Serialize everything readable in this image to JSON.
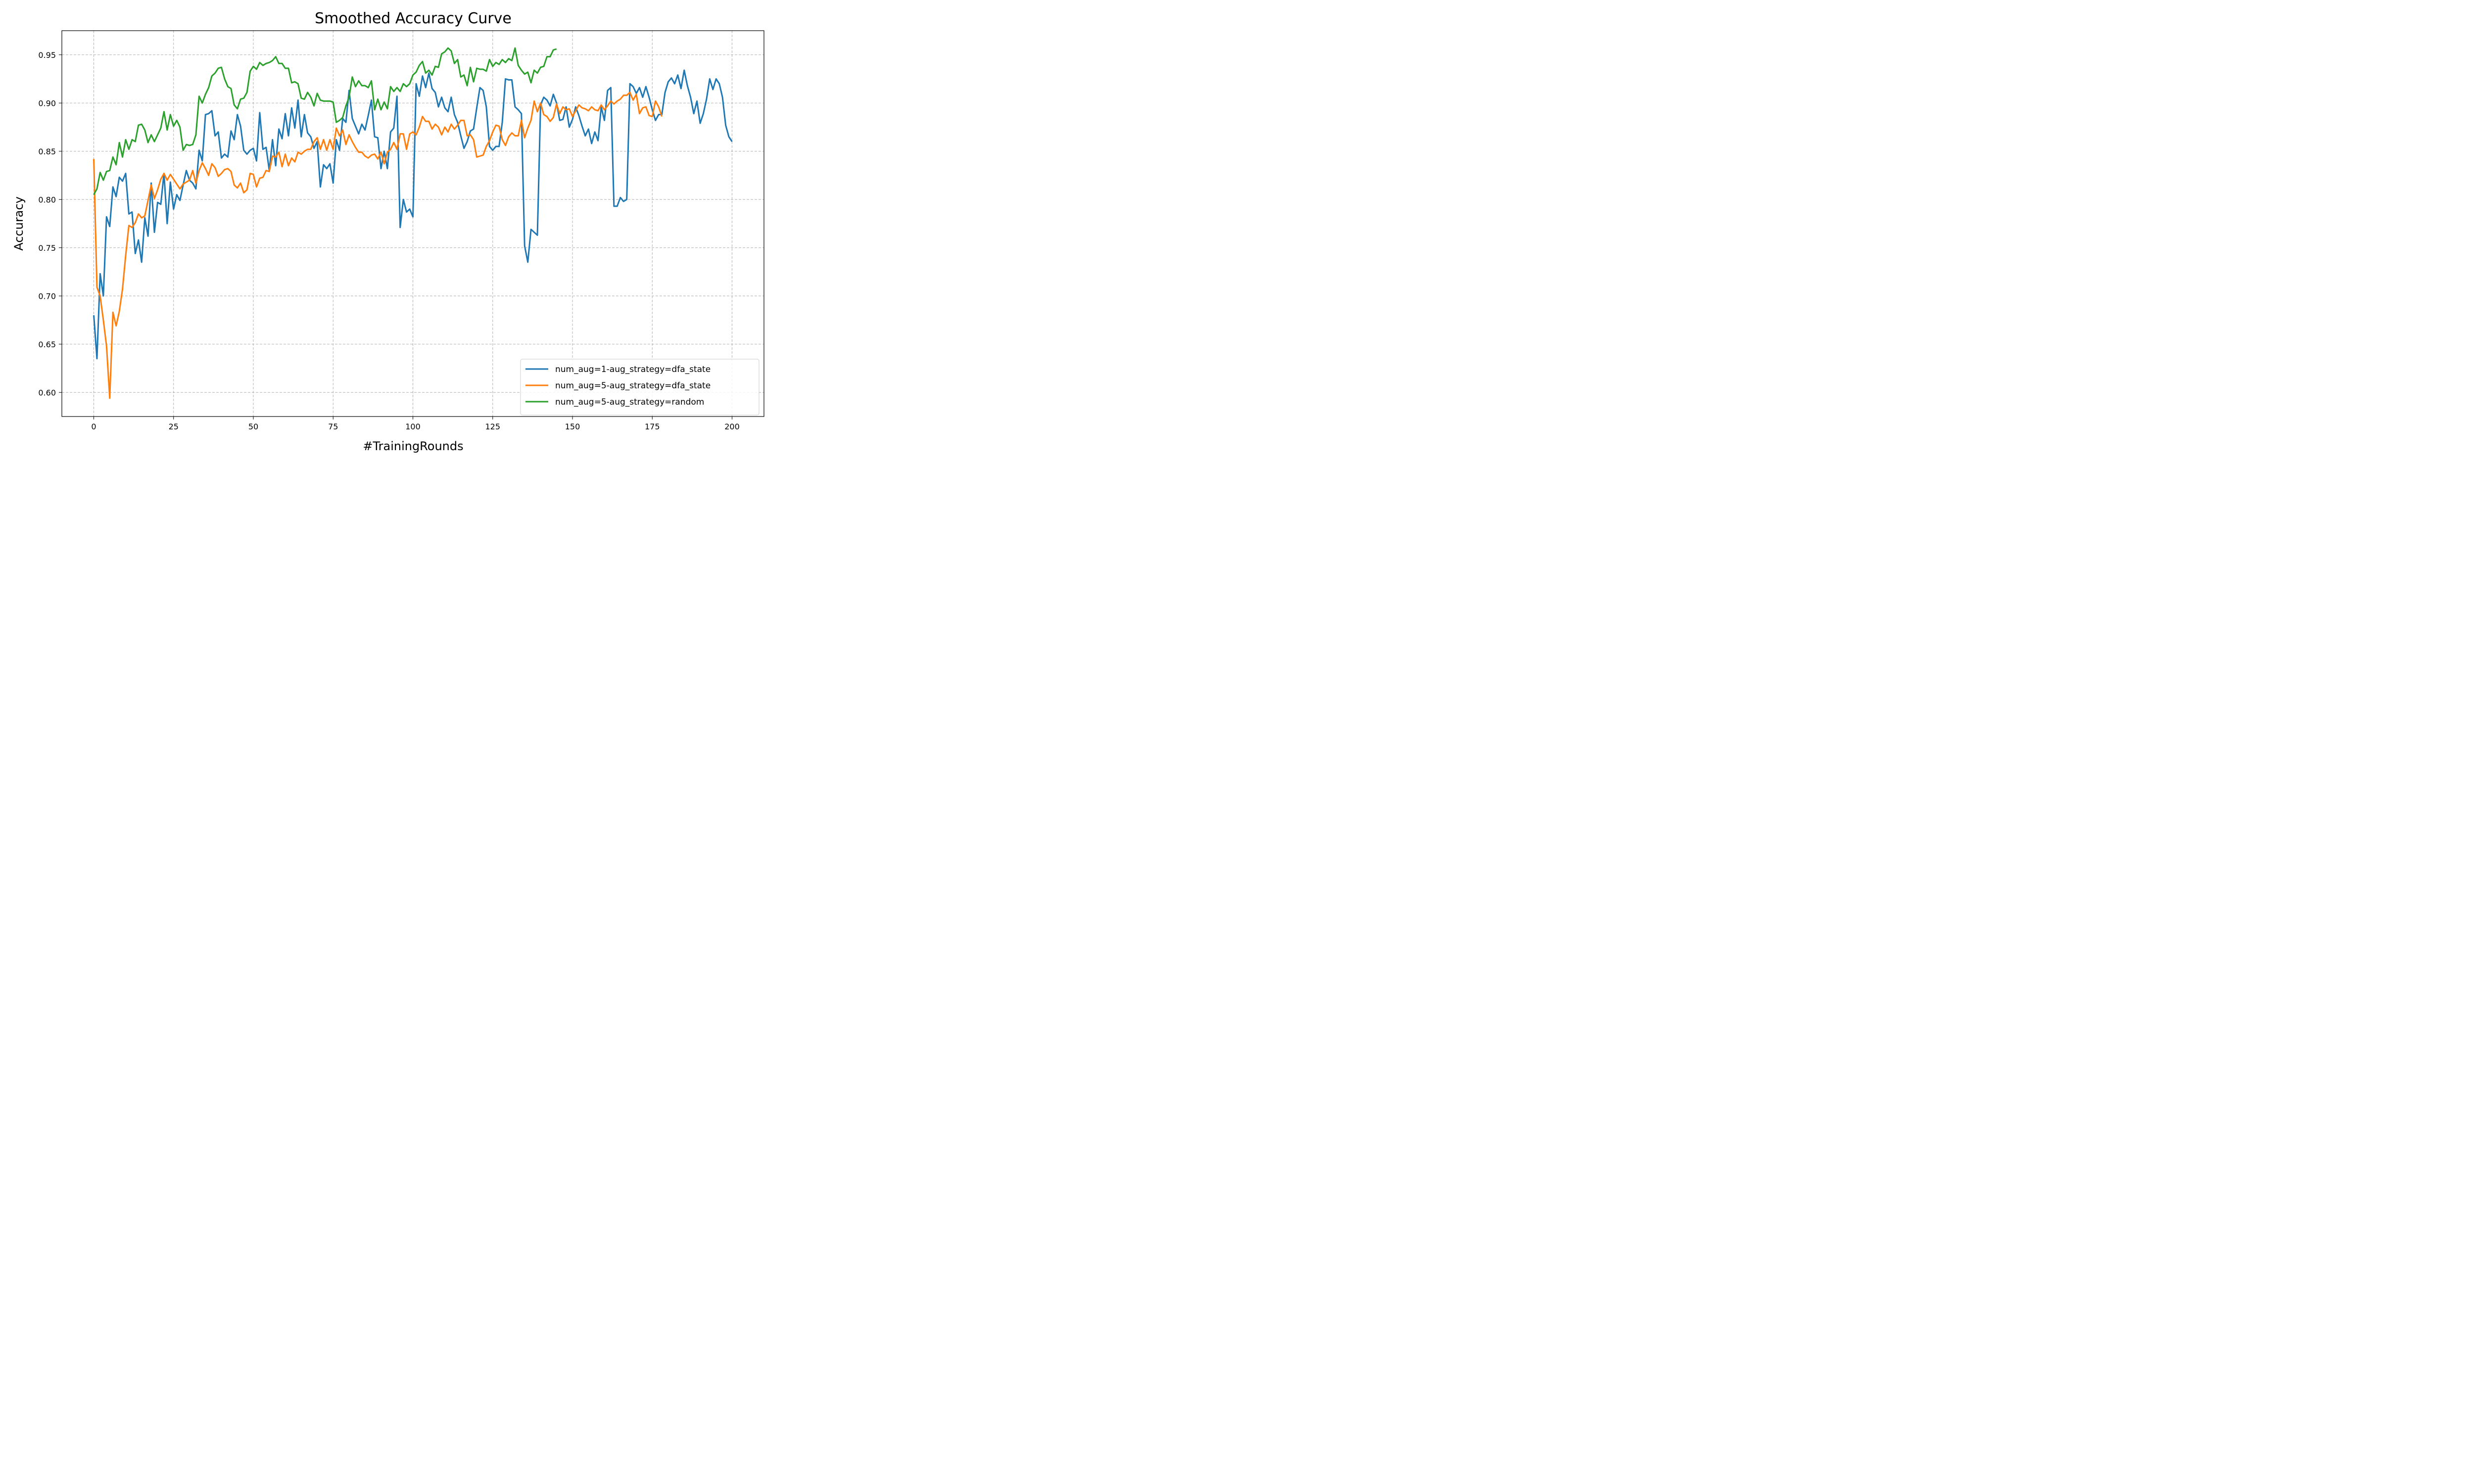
{
  "chart_data": {
    "type": "line",
    "title": "Smoothed Accuracy Curve",
    "xlabel": "#TrainingRounds",
    "ylabel": "Accuracy",
    "xlim": [
      -10,
      210
    ],
    "ylim": [
      0.575,
      0.975
    ],
    "xticks": [
      0,
      25,
      50,
      75,
      100,
      125,
      150,
      175,
      200
    ],
    "xtick_labels": [
      "0",
      "25",
      "50",
      "75",
      "100",
      "125",
      "150",
      "175",
      "200"
    ],
    "yticks": [
      0.6,
      0.65,
      0.7,
      0.75,
      0.8,
      0.85,
      0.9,
      0.95
    ],
    "ytick_labels": [
      "0.60",
      "0.65",
      "0.70",
      "0.75",
      "0.80",
      "0.85",
      "0.90",
      "0.95"
    ],
    "grid": true,
    "legend_position": "lower-right",
    "series": [
      {
        "name": "num_aug=1-aug_strategy=dfa_state",
        "color": "#1f77b4",
        "values": [
          0.68,
          0.635,
          0.723,
          0.7,
          0.782,
          0.772,
          0.813,
          0.803,
          0.823,
          0.819,
          0.827,
          0.785,
          0.787,
          0.744,
          0.758,
          0.735,
          0.781,
          0.762,
          0.817,
          0.766,
          0.797,
          0.795,
          0.827,
          0.775,
          0.818,
          0.79,
          0.805,
          0.799,
          0.815,
          0.83,
          0.82,
          0.817,
          0.811,
          0.851,
          0.84,
          0.888,
          0.889,
          0.892,
          0.866,
          0.87,
          0.843,
          0.847,
          0.844,
          0.871,
          0.862,
          0.888,
          0.876,
          0.851,
          0.847,
          0.851,
          0.853,
          0.84,
          0.89,
          0.852,
          0.854,
          0.83,
          0.862,
          0.835,
          0.873,
          0.863,
          0.889,
          0.866,
          0.895,
          0.874,
          0.903,
          0.865,
          0.888,
          0.869,
          0.865,
          0.853,
          0.86,
          0.813,
          0.836,
          0.832,
          0.837,
          0.817,
          0.862,
          0.851,
          0.884,
          0.88,
          0.913,
          0.884,
          0.876,
          0.868,
          0.878,
          0.872,
          0.887,
          0.903,
          0.865,
          0.864,
          0.832,
          0.85,
          0.832,
          0.87,
          0.874,
          0.907,
          0.771,
          0.8,
          0.787,
          0.79,
          0.782,
          0.92,
          0.907,
          0.928,
          0.916,
          0.931,
          0.915,
          0.911,
          0.896,
          0.906,
          0.895,
          0.891,
          0.906,
          0.888,
          0.88,
          0.866,
          0.853,
          0.86,
          0.871,
          0.873,
          0.895,
          0.916,
          0.913,
          0.896,
          0.855,
          0.851,
          0.855,
          0.855,
          0.88,
          0.925,
          0.924,
          0.924,
          0.896,
          0.893,
          0.889,
          0.752,
          0.735,
          0.769,
          0.766,
          0.763,
          0.898,
          0.906,
          0.903,
          0.897,
          0.909,
          0.9,
          0.882,
          0.883,
          0.896,
          0.875,
          0.883,
          0.896,
          0.887,
          0.876,
          0.866,
          0.873,
          0.858,
          0.87,
          0.861,
          0.896,
          0.882,
          0.913,
          0.916,
          0.793,
          0.793,
          0.802,
          0.798,
          0.8,
          0.92,
          0.917,
          0.91,
          0.916,
          0.906,
          0.917,
          0.906,
          0.893,
          0.882,
          0.888,
          0.888,
          0.911,
          0.922,
          0.926,
          0.92,
          0.929,
          0.915,
          0.934,
          0.918,
          0.906,
          0.889,
          0.902,
          0.879,
          0.889,
          0.904,
          0.925,
          0.914,
          0.925,
          0.92,
          0.906,
          0.877,
          0.865,
          0.86
        ]
      },
      {
        "name": "num_aug=5-aug_strategy=dfa_state",
        "color": "#ff7f0e",
        "values": [
          0.842,
          0.709,
          0.7,
          0.675,
          0.648,
          0.594,
          0.683,
          0.669,
          0.684,
          0.707,
          0.742,
          0.773,
          0.771,
          0.776,
          0.785,
          0.781,
          0.783,
          0.799,
          0.815,
          0.801,
          0.81,
          0.821,
          0.827,
          0.82,
          0.826,
          0.821,
          0.816,
          0.811,
          0.816,
          0.818,
          0.82,
          0.83,
          0.817,
          0.83,
          0.838,
          0.832,
          0.825,
          0.837,
          0.833,
          0.824,
          0.827,
          0.831,
          0.832,
          0.829,
          0.815,
          0.812,
          0.817,
          0.807,
          0.81,
          0.827,
          0.826,
          0.813,
          0.822,
          0.823,
          0.83,
          0.829,
          0.845,
          0.844,
          0.849,
          0.834,
          0.847,
          0.835,
          0.843,
          0.839,
          0.849,
          0.847,
          0.85,
          0.852,
          0.852,
          0.86,
          0.864,
          0.852,
          0.862,
          0.851,
          0.862,
          0.852,
          0.874,
          0.866,
          0.872,
          0.857,
          0.867,
          0.86,
          0.854,
          0.849,
          0.849,
          0.845,
          0.843,
          0.846,
          0.847,
          0.842,
          0.849,
          0.837,
          0.849,
          0.852,
          0.859,
          0.852,
          0.868,
          0.868,
          0.852,
          0.868,
          0.87,
          0.867,
          0.875,
          0.886,
          0.881,
          0.881,
          0.873,
          0.878,
          0.875,
          0.867,
          0.875,
          0.87,
          0.878,
          0.873,
          0.877,
          0.882,
          0.882,
          0.866,
          0.867,
          0.862,
          0.844,
          0.845,
          0.846,
          0.855,
          0.861,
          0.87,
          0.877,
          0.876,
          0.862,
          0.856,
          0.865,
          0.869,
          0.866,
          0.866,
          0.882,
          0.864,
          0.874,
          0.882,
          0.902,
          0.891,
          0.9,
          0.888,
          0.886,
          0.881,
          0.885,
          0.899,
          0.889,
          0.896,
          0.893,
          0.894,
          0.886,
          0.892,
          0.898,
          0.895,
          0.894,
          0.892,
          0.896,
          0.893,
          0.892,
          0.898,
          0.893,
          0.897,
          0.902,
          0.899,
          0.902,
          0.904,
          0.908,
          0.908,
          0.911,
          0.903,
          0.909,
          0.889,
          0.895,
          0.896,
          0.887,
          0.886,
          0.902,
          0.896,
          0.886
        ]
      },
      {
        "name": "num_aug=5-aug_strategy=random",
        "color": "#2ca02c",
        "values": [
          0.805,
          0.811,
          0.828,
          0.82,
          0.829,
          0.83,
          0.844,
          0.836,
          0.859,
          0.844,
          0.862,
          0.852,
          0.862,
          0.86,
          0.877,
          0.878,
          0.872,
          0.859,
          0.867,
          0.86,
          0.867,
          0.874,
          0.891,
          0.872,
          0.888,
          0.876,
          0.882,
          0.875,
          0.851,
          0.857,
          0.856,
          0.857,
          0.867,
          0.907,
          0.9,
          0.909,
          0.916,
          0.928,
          0.931,
          0.936,
          0.937,
          0.925,
          0.917,
          0.915,
          0.898,
          0.894,
          0.904,
          0.905,
          0.911,
          0.933,
          0.938,
          0.935,
          0.942,
          0.939,
          0.941,
          0.942,
          0.944,
          0.948,
          0.941,
          0.941,
          0.936,
          0.936,
          0.921,
          0.922,
          0.92,
          0.905,
          0.904,
          0.911,
          0.906,
          0.897,
          0.91,
          0.903,
          0.902,
          0.902,
          0.902,
          0.901,
          0.88,
          0.882,
          0.885,
          0.897,
          0.906,
          0.927,
          0.917,
          0.923,
          0.918,
          0.918,
          0.916,
          0.923,
          0.893,
          0.904,
          0.893,
          0.901,
          0.894,
          0.917,
          0.912,
          0.916,
          0.912,
          0.92,
          0.917,
          0.92,
          0.929,
          0.932,
          0.939,
          0.943,
          0.931,
          0.934,
          0.929,
          0.938,
          0.937,
          0.951,
          0.953,
          0.957,
          0.954,
          0.941,
          0.945,
          0.927,
          0.929,
          0.918,
          0.937,
          0.922,
          0.936,
          0.935,
          0.935,
          0.933,
          0.945,
          0.938,
          0.942,
          0.94,
          0.945,
          0.942,
          0.946,
          0.944,
          0.957,
          0.939,
          0.934,
          0.93,
          0.932,
          0.921,
          0.934,
          0.931,
          0.937,
          0.938,
          0.948,
          0.948,
          0.955,
          0.956
        ]
      }
    ]
  }
}
